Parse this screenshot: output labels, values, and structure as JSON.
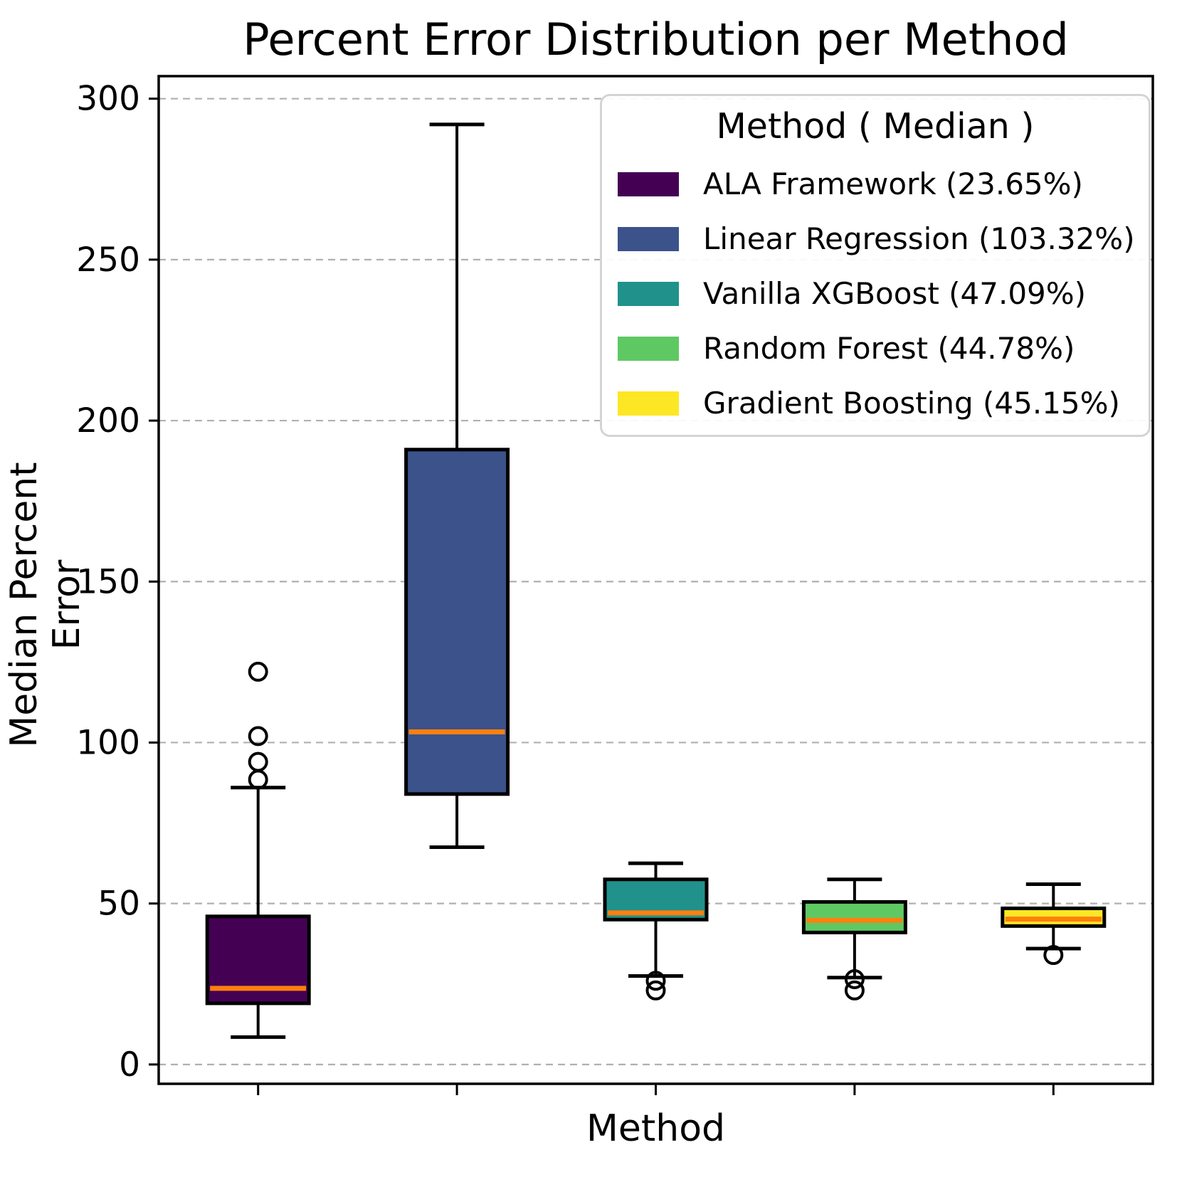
{
  "title": "Percent Error Distribution per Method",
  "axes": {
    "xlabel": "Method",
    "ylabel": "Median Percent Error",
    "yticks": [
      0,
      50,
      100,
      150,
      200,
      250,
      300
    ],
    "x_tick_count": 5,
    "x_tick_labels_visible": false
  },
  "legend": {
    "title": "Method ( Median )",
    "entries": [
      {
        "label": "ALA Framework (23.65%)",
        "color": "#440154"
      },
      {
        "label": "Linear Regression (103.32%)",
        "color": "#3b528b"
      },
      {
        "label": "Vanilla XGBoost (47.09%)",
        "color": "#21918c"
      },
      {
        "label": "Random Forest (44.78%)",
        "color": "#5ec962"
      },
      {
        "label": "Gradient Boosting (45.15%)",
        "color": "#fde725"
      }
    ]
  },
  "chart_data": {
    "type": "boxplot",
    "title": "Percent Error Distribution per Method",
    "xlabel": "Method",
    "ylabel": "Median Percent Error",
    "ylim": [
      -6,
      307
    ],
    "yticks": [
      0,
      50,
      100,
      150,
      200,
      250,
      300
    ],
    "grid": true,
    "grid_style": "dashed",
    "grid_color": "#b0b0b0",
    "legend_position": "upper right",
    "legend_title": "Method ( Median )",
    "median_line_color": "#ff7f0e",
    "box_edge_color": "#000000",
    "series": [
      {
        "name": "ALA Framework",
        "median_pct_label": "23.65%",
        "color": "#440154",
        "whisker_low": 8.5,
        "q1": 19,
        "median": 23.65,
        "q3": 46,
        "whisker_high": 86,
        "outliers": [
          88.5,
          94,
          102,
          122
        ]
      },
      {
        "name": "Linear Regression",
        "median_pct_label": "103.32%",
        "color": "#3b528b",
        "whisker_low": 67.5,
        "q1": 84,
        "median": 103.32,
        "q3": 191,
        "whisker_high": 292,
        "outliers": []
      },
      {
        "name": "Vanilla XGBoost",
        "median_pct_label": "47.09%",
        "color": "#21918c",
        "whisker_low": 27.5,
        "q1": 45,
        "median": 47.09,
        "q3": 57.5,
        "whisker_high": 62.5,
        "outliers": [
          26,
          23
        ]
      },
      {
        "name": "Random Forest",
        "median_pct_label": "44.78%",
        "color": "#5ec962",
        "whisker_low": 27,
        "q1": 41,
        "median": 44.78,
        "q3": 50.5,
        "whisker_high": 57.5,
        "outliers": [
          26.5,
          23
        ]
      },
      {
        "name": "Gradient Boosting",
        "median_pct_label": "45.15%",
        "color": "#fde725",
        "whisker_low": 36,
        "q1": 43,
        "median": 45.15,
        "q3": 48.5,
        "whisker_high": 56,
        "outliers": [
          34
        ]
      }
    ]
  }
}
